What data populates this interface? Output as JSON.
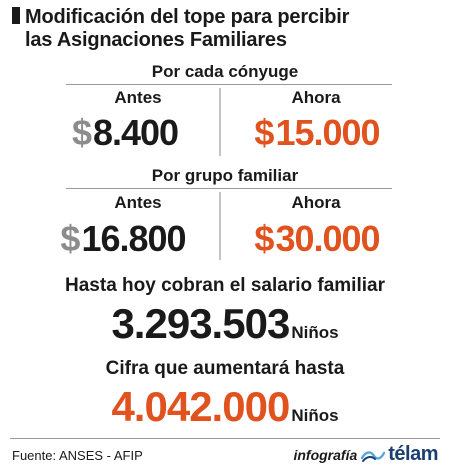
{
  "title": {
    "line1": "Modificación del tope para percibir",
    "line2": "las Asignaciones Familiares"
  },
  "sections": [
    {
      "label": "Por cada cónyuge",
      "before_label": "Antes",
      "after_label": "Ahora",
      "before_currency": "$",
      "before_amount": "8.400",
      "after_currency": "$",
      "after_amount": "15.000"
    },
    {
      "label": "Por grupo familiar",
      "before_label": "Antes",
      "after_label": "Ahora",
      "before_currency": "$",
      "before_amount": "16.800",
      "after_currency": "$",
      "after_amount": "30.000"
    }
  ],
  "current": {
    "heading": "Hasta hoy cobran el salario familiar",
    "number": "3.293.503",
    "unit": "Niños"
  },
  "future": {
    "heading": "Cifra que aumentará hasta",
    "number": "4.042.000",
    "unit": "Niños"
  },
  "footer": {
    "source": "Fuente: ANSES - AFIP",
    "infografia": "infografía",
    "brand": "télam",
    "brand_icon": "telam-logo-icon"
  },
  "colors": {
    "accent_orange": "#e0531f",
    "currency_gray": "#8c8c8c",
    "text_dark": "#1a1a1a",
    "brand_blue": "#1b3f73"
  }
}
